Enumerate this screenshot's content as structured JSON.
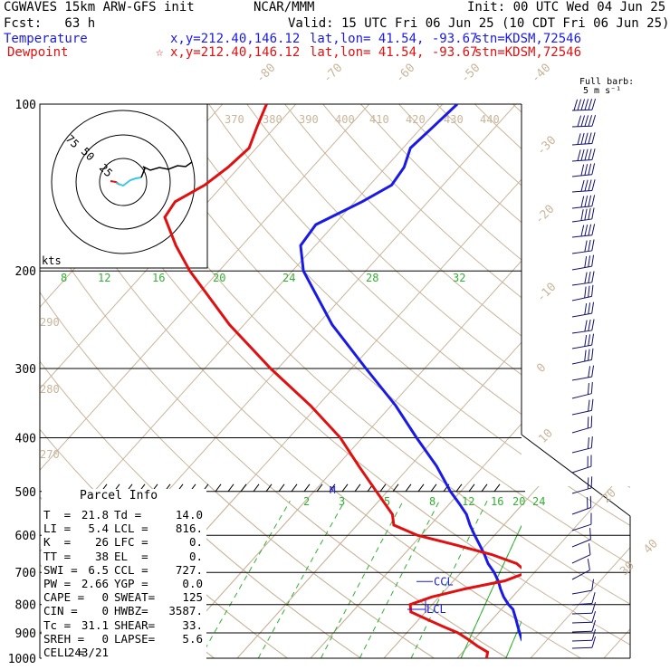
{
  "header": {
    "model": "CGWAVES 15km ARW-GFS init",
    "org": "NCAR/MMM",
    "init": "Init: 00 UTC Wed 04 Jun 25",
    "fcst": "Fcst:   63 h",
    "valid": "Valid: 15 UTC Fri 06 Jun 25 (10 CDT Fri 06 Jun 25)",
    "temp_label": "Temperature",
    "temp_xy": "x,y=212.40,146.12",
    "temp_latlon": "lat,lon= 41.54, -93.67",
    "temp_stn": "stn=KDSM,72546",
    "dew_label": "Dewpoint",
    "dew_marker": "☆",
    "dew_xy": "x,y=212.40,146.12",
    "dew_latlon": "lat,lon= 41.54, -93.67",
    "dew_stn": "stn=KDSM,72546"
  },
  "barb_key": {
    "line1": "Full barb:",
    "line2": "5 m s⁻¹"
  },
  "hodograph": {
    "units": "kts",
    "rings": [
      "75",
      "50",
      "25"
    ]
  },
  "parcel_info": {
    "title": "Parcel Info",
    "rows": [
      [
        "T  =",
        "21.8",
        "Td =",
        "14.0"
      ],
      [
        "LI =",
        "5.4",
        "LCL =",
        "816."
      ],
      [
        "K  =",
        "26",
        "LFC =",
        "0."
      ],
      [
        "TT =",
        "38",
        "EL  =",
        "0."
      ],
      [
        "SWI =",
        "6.5",
        "CCL =",
        "727."
      ],
      [
        "PW =",
        "2.66",
        "YGP =",
        "0.0"
      ],
      [
        "CAPE =",
        "0",
        "SWEAT=",
        "125"
      ],
      [
        "CIN =",
        "0",
        "HWBZ=",
        "3587."
      ],
      [
        "Tc =",
        "31.1",
        "SHEAR=",
        "33."
      ],
      [
        "SREH =",
        "0",
        "LAPSE=",
        "5.6"
      ],
      [
        "CELL =",
        "243/21",
        "",
        ""
      ]
    ]
  },
  "level_labels": {
    "ccl": "CCL",
    "lcl": "LCL",
    "m": "M"
  },
  "chart_data": {
    "type": "line",
    "subtype": "skew-T log-p sounding",
    "pressure_levels": [
      "100",
      "200",
      "300",
      "400",
      "500",
      "600",
      "700",
      "800",
      "900",
      "1000"
    ],
    "isotherm_labels": [
      "-80",
      "-70",
      "-60",
      "-50",
      "-40",
      "-30",
      "-20",
      "-10",
      "0",
      "10",
      "20",
      "30",
      "40"
    ],
    "theta_labels": [
      "370",
      "380",
      "390",
      "400",
      "410",
      "420",
      "430",
      "440",
      "290",
      "280",
      "270"
    ],
    "mixing_ratio_upper": [
      "8",
      "12",
      "16",
      "20",
      "24",
      "28",
      "32"
    ],
    "mixing_ratio_lower": [
      "2",
      "3",
      "5",
      "8",
      "12",
      "16",
      "20",
      "24"
    ],
    "colors": {
      "temperature": "#1a1ae6",
      "dewpoint": "#e01010",
      "grid": "#c9b59a",
      "mixing": "#33b033",
      "barbs": "#10106e"
    },
    "series": [
      {
        "name": "Temperature",
        "points": [
          [
            1000,
            21.8
          ],
          [
            980,
            20.2
          ],
          [
            950,
            17.8
          ],
          [
            925,
            16.5
          ],
          [
            900,
            15.4
          ],
          [
            875,
            14.3
          ],
          [
            850,
            13.2
          ],
          [
            816,
            11.6
          ],
          [
            800,
            10.4
          ],
          [
            775,
            8.8
          ],
          [
            750,
            7.4
          ],
          [
            727,
            6.2
          ],
          [
            700,
            4.5
          ],
          [
            675,
            2.6
          ],
          [
            650,
            1.0
          ],
          [
            625,
            -0.8
          ],
          [
            600,
            -2.7
          ],
          [
            575,
            -4.6
          ],
          [
            550,
            -6.4
          ],
          [
            525,
            -8.8
          ],
          [
            500,
            -11.4
          ],
          [
            450,
            -16.4
          ],
          [
            400,
            -22.6
          ],
          [
            350,
            -29.4
          ],
          [
            300,
            -38.0
          ],
          [
            250,
            -48.0
          ],
          [
            200,
            -58.5
          ],
          [
            180,
            -62.0
          ],
          [
            165,
            -62.5
          ],
          [
            150,
            -59.0
          ],
          [
            140,
            -57.0
          ],
          [
            130,
            -57.5
          ],
          [
            120,
            -59.0
          ],
          [
            110,
            -58.5
          ],
          [
            100,
            -58.0
          ]
        ]
      },
      {
        "name": "Dewpoint",
        "points": [
          [
            1000,
            14.0
          ],
          [
            975,
            13.4
          ],
          [
            950,
            11.2
          ],
          [
            925,
            9.2
          ],
          [
            900,
            7.0
          ],
          [
            875,
            4.0
          ],
          [
            850,
            1.0
          ],
          [
            825,
            -2.0
          ],
          [
            800,
            -3.0
          ],
          [
            775,
            -1.0
          ],
          [
            750,
            2.5
          ],
          [
            725,
            7.0
          ],
          [
            700,
            9.0
          ],
          [
            675,
            6.5
          ],
          [
            650,
            2.0
          ],
          [
            625,
            -4.0
          ],
          [
            600,
            -10.5
          ],
          [
            575,
            -15.0
          ],
          [
            550,
            -16.5
          ],
          [
            500,
            -21.5
          ],
          [
            450,
            -27.0
          ],
          [
            400,
            -33.0
          ],
          [
            350,
            -41.0
          ],
          [
            300,
            -51.0
          ],
          [
            250,
            -62.0
          ],
          [
            200,
            -74.0
          ],
          [
            180,
            -79.0
          ],
          [
            160,
            -84.0
          ],
          [
            150,
            -84.5
          ],
          [
            140,
            -82.5
          ],
          [
            130,
            -81.5
          ],
          [
            120,
            -81.0
          ],
          [
            110,
            -82.5
          ],
          [
            100,
            -84.0
          ]
        ]
      }
    ]
  }
}
